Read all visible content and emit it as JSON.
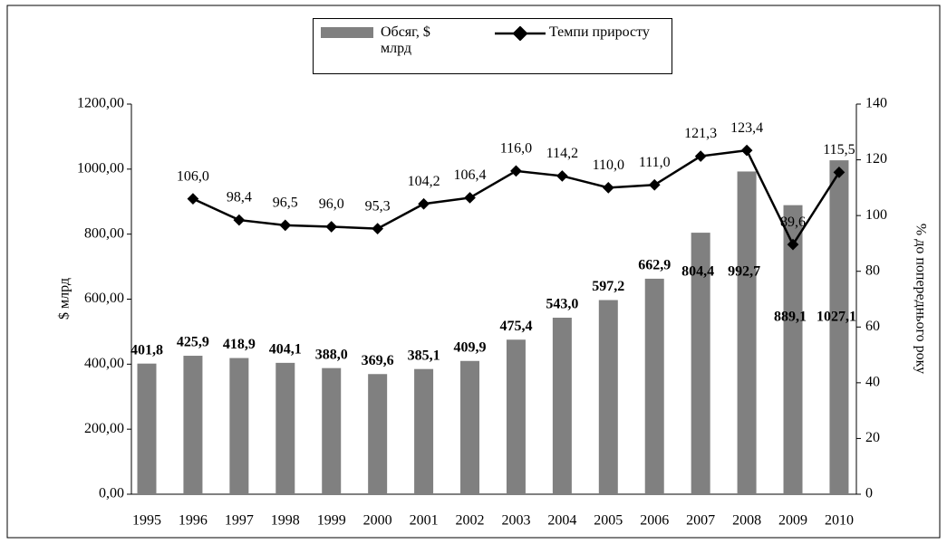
{
  "chart_data": {
    "type": "bar_line",
    "categories": [
      "1995",
      "1996",
      "1997",
      "1998",
      "1999",
      "2000",
      "2001",
      "2002",
      "2003",
      "2004",
      "2005",
      "2006",
      "2007",
      "2008",
      "2009",
      "2010"
    ],
    "series": [
      {
        "name": "Обсяг, $ млрд",
        "type": "bar",
        "color": "#808080",
        "values": [
          401.8,
          425.9,
          418.9,
          404.1,
          388.0,
          369.6,
          385.1,
          409.9,
          475.4,
          543.0,
          597.2,
          662.9,
          804.4,
          992.7,
          889.1,
          1027.1
        ],
        "value_labels": [
          "401,8",
          "425,9",
          "418,9",
          "404,1",
          "388,0",
          "369,6",
          "385,1",
          "409,9",
          "475,4",
          "543,0",
          "597,2",
          "662,9",
          "804,4",
          "992,7",
          "889,1",
          "1027,1"
        ]
      },
      {
        "name": "Темпи приросту",
        "type": "line",
        "axis": "y2",
        "color": "#000000",
        "values": [
          null,
          106.0,
          98.4,
          96.5,
          96.0,
          95.3,
          104.2,
          106.4,
          116.0,
          114.2,
          110.0,
          111.0,
          121.3,
          123.4,
          89.6,
          115.5
        ],
        "value_labels": [
          null,
          "106,0",
          "98,4",
          "96,5",
          "96,0",
          "95,3",
          "104,2",
          "106,4",
          "116,0",
          "114,2",
          "110,0",
          "111,0",
          "121,3",
          "123,4",
          "89,6",
          "115,5"
        ]
      }
    ],
    "y_label": "$ млрд",
    "y2_label": "% до попереднього року",
    "ylim": [
      0,
      1200
    ],
    "yticks": [
      {
        "value": 0,
        "label": "0,00"
      },
      {
        "value": 200,
        "label": "200,00"
      },
      {
        "value": 400,
        "label": "400,00"
      },
      {
        "value": 600,
        "label": "600,00"
      },
      {
        "value": 800,
        "label": "800,00"
      },
      {
        "value": 1000,
        "label": "1000,00"
      },
      {
        "value": 1200,
        "label": "1200,00"
      }
    ],
    "y2lim": [
      0,
      140
    ],
    "y2ticks": [
      0,
      20,
      40,
      60,
      80,
      100,
      120,
      140
    ],
    "legend": "top"
  }
}
